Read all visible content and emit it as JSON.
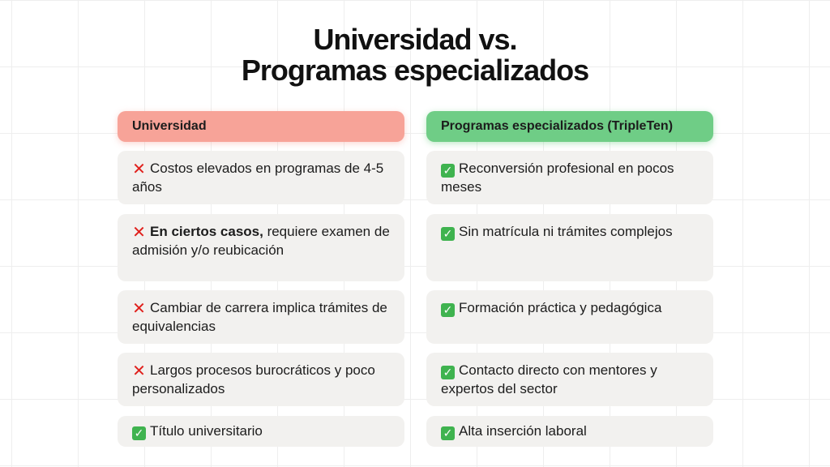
{
  "title": {
    "line1": "Universidad vs.",
    "line2": "Programas especializados"
  },
  "icons": {
    "cross": "cross-mark-icon",
    "check": "check-mark-icon"
  },
  "colors": {
    "left_header": "#f7a398",
    "right_header": "#6fcd86",
    "card": "#f2f1ef"
  },
  "left": {
    "header": "Universidad",
    "items": [
      {
        "icon": "cross",
        "lead": "",
        "text": "Costos elevados en programas de 4-5 años"
      },
      {
        "icon": "cross",
        "lead": "En ciertos casos,",
        "text": " requiere examen de admisión y/o reubicación"
      },
      {
        "icon": "cross",
        "lead": "",
        "text": "Cambiar de carrera implica trámites de equivalencias"
      },
      {
        "icon": "cross",
        "lead": "",
        "text": "Largos procesos burocráticos y poco personalizados"
      },
      {
        "icon": "check",
        "lead": "",
        "text": "Título universitario"
      }
    ]
  },
  "right": {
    "header": "Programas especializados (TripleTen)",
    "items": [
      {
        "icon": "check",
        "text": "Reconversión profesional en pocos meses"
      },
      {
        "icon": "check",
        "text": "Sin matrícula ni trámites complejos"
      },
      {
        "icon": "check",
        "text": "Formación práctica y pedagógica"
      },
      {
        "icon": "check",
        "text": "Contacto directo con mentores y expertos del sector"
      },
      {
        "icon": "check",
        "text": "Alta inserción laboral"
      }
    ]
  }
}
